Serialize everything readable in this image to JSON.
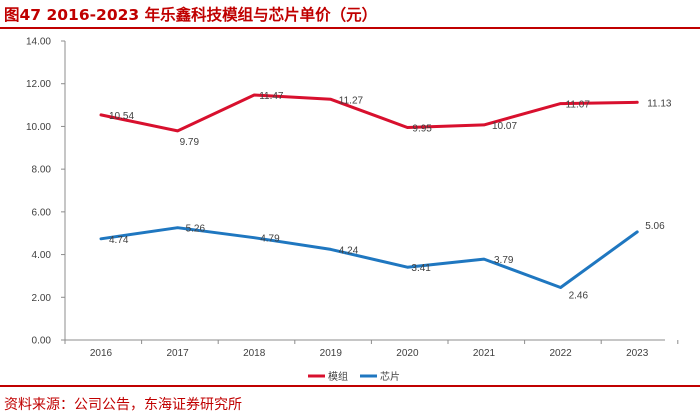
{
  "header": {
    "title": "图47  2016-2023 年乐鑫科技模组与芯片单价（元）"
  },
  "footer": {
    "source": "资料来源：公司公告，东海证券研究所"
  },
  "colors": {
    "module": "#d8102e",
    "chip": "#1f77c0",
    "accent": "#c00000"
  },
  "chart_data": {
    "type": "line",
    "title": "2016-2023 年乐鑫科技模组与芯片单价（元）",
    "x": [
      "2016",
      "2017",
      "2018",
      "2019",
      "2020",
      "2021",
      "2022",
      "2023"
    ],
    "y_ticks": [
      "0.00",
      "2.00",
      "4.00",
      "6.00",
      "8.00",
      "10.00",
      "12.00",
      "14.00"
    ],
    "ylim": [
      0,
      14
    ],
    "grid": false,
    "legend_position": "bottom-center",
    "series": [
      {
        "name": "模组",
        "color": "#d8102e",
        "values": [
          10.54,
          9.79,
          11.47,
          11.27,
          9.95,
          10.07,
          11.07,
          11.13
        ],
        "labels": [
          "10.54",
          "9.79",
          "11.47",
          "11.27",
          "9.95",
          "10.07",
          "11.07",
          "11.13"
        ]
      },
      {
        "name": "芯片",
        "color": "#1f77c0",
        "values": [
          4.74,
          5.26,
          4.79,
          4.24,
          3.41,
          3.79,
          2.46,
          5.06
        ],
        "labels": [
          "4.74",
          "5.26",
          "4.79",
          "4.24",
          "3.41",
          "3.79",
          "2.46",
          "5.06"
        ]
      }
    ]
  }
}
